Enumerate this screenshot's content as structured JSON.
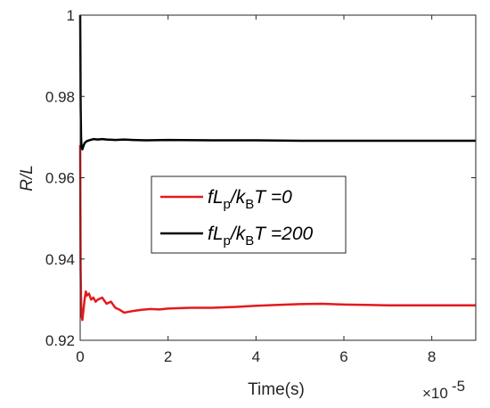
{
  "chart_data": {
    "type": "line",
    "title": "",
    "xlabel": "Time(s)",
    "ylabel": "R/L",
    "x_multiplier_label": "×10",
    "x_multiplier_exponent": "-5",
    "xlim": [
      0,
      9
    ],
    "ylim": [
      0.92,
      1.0
    ],
    "xticks": [
      0,
      2,
      4,
      6,
      8
    ],
    "xtick_labels": [
      "0",
      "2",
      "4",
      "6",
      "8"
    ],
    "yticks": [
      0.92,
      0.94,
      0.96,
      0.98,
      1.0
    ],
    "ytick_labels": [
      "0.92",
      "0.94",
      "0.96",
      "0.98",
      "1"
    ],
    "grid": false,
    "legend_position": "center",
    "series": [
      {
        "name": "fLp/kBT =0",
        "legend_parts": {
          "a": "fL",
          "a_sub": "p",
          "b": "/k",
          "b_sub": "B",
          "c": "T =0"
        },
        "color": "#e41a1c",
        "x": [
          0,
          0.005,
          0.01,
          0.02,
          0.03,
          0.05,
          0.08,
          0.1,
          0.13,
          0.15,
          0.2,
          0.25,
          0.3,
          0.35,
          0.4,
          0.5,
          0.6,
          0.7,
          0.8,
          0.9,
          1.0,
          1.1,
          1.2,
          1.4,
          1.6,
          1.8,
          2.0,
          2.5,
          3.0,
          3.5,
          4.0,
          4.5,
          5.0,
          5.5,
          6.0,
          6.5,
          7.0,
          7.5,
          8.0,
          8.5,
          9.0
        ],
        "y": [
          0.968,
          0.952,
          0.938,
          0.93,
          0.926,
          0.925,
          0.928,
          0.93,
          0.932,
          0.931,
          0.9315,
          0.93,
          0.9305,
          0.9295,
          0.93,
          0.9305,
          0.929,
          0.9295,
          0.928,
          0.9275,
          0.9268,
          0.927,
          0.9272,
          0.9275,
          0.9277,
          0.9276,
          0.9278,
          0.928,
          0.928,
          0.9282,
          0.9285,
          0.9287,
          0.9289,
          0.929,
          0.9288,
          0.9287,
          0.9286,
          0.9286,
          0.9286,
          0.9286,
          0.9286
        ]
      },
      {
        "name": "fLp/kBT =200",
        "legend_parts": {
          "a": "fL",
          "a_sub": "p",
          "b": "/k",
          "b_sub": "B",
          "c": "T =200"
        },
        "color": "#000000",
        "x": [
          0,
          0.005,
          0.01,
          0.02,
          0.03,
          0.05,
          0.08,
          0.1,
          0.15,
          0.2,
          0.3,
          0.4,
          0.5,
          0.6,
          0.8,
          1.0,
          1.2,
          1.5,
          2.0,
          3.0,
          4.0,
          5.0,
          6.0,
          7.0,
          8.0,
          9.0
        ],
        "y": [
          1.0,
          0.99,
          0.978,
          0.97,
          0.9675,
          0.967,
          0.968,
          0.9685,
          0.969,
          0.9692,
          0.9695,
          0.9694,
          0.9695,
          0.9694,
          0.9693,
          0.9694,
          0.9693,
          0.9692,
          0.9693,
          0.9692,
          0.9692,
          0.9691,
          0.9691,
          0.9691,
          0.9691,
          0.9691
        ]
      }
    ]
  }
}
